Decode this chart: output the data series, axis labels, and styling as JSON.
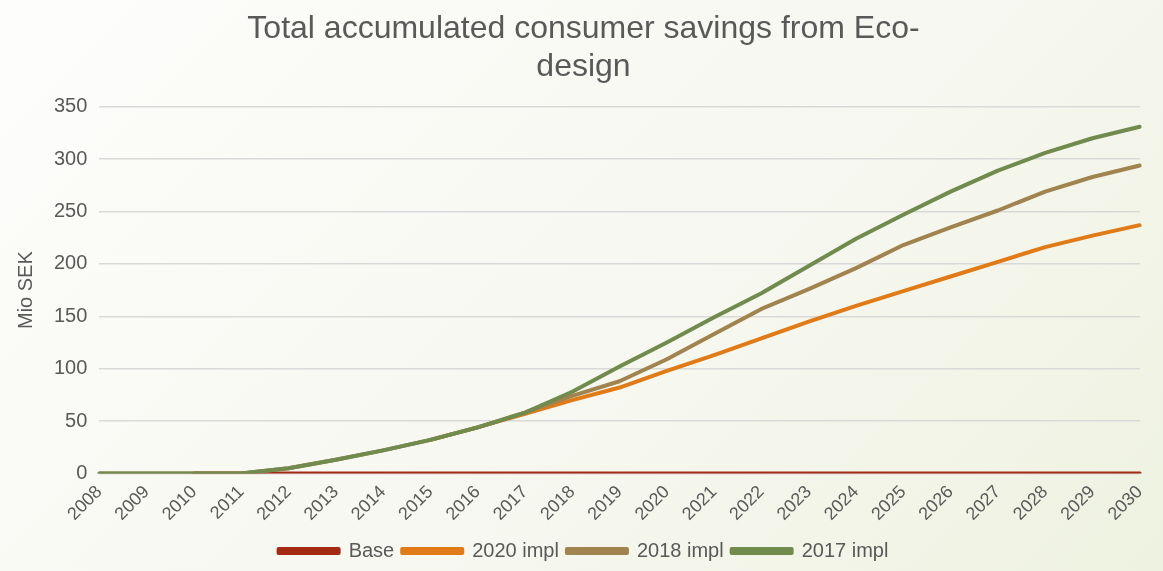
{
  "chart_data": {
    "type": "line",
    "title": [
      "Total accumulated consumer savings from Eco-",
      "design"
    ],
    "ylabel": "Mio SEK",
    "categories": [
      "2008",
      "2009",
      "2010",
      "2011",
      "2012",
      "2013",
      "2014",
      "2015",
      "2016",
      "2017",
      "2018",
      "2019",
      "2020",
      "2021",
      "2022",
      "2023",
      "2024",
      "2025",
      "2026",
      "2027",
      "2028",
      "2029",
      "2030"
    ],
    "series": [
      {
        "name": "Base",
        "color": "#a52a14",
        "values": [
          null,
          null,
          0,
          0,
          0,
          0,
          0,
          0,
          0,
          0,
          0,
          0,
          0,
          0,
          0,
          0,
          0,
          0,
          0,
          0,
          0,
          0,
          0
        ]
      },
      {
        "name": "2020 impl",
        "color": "#e07b18",
        "values": [
          null,
          null,
          null,
          null,
          null,
          null,
          null,
          32,
          44,
          57,
          70,
          82,
          98,
          113,
          129,
          145,
          160,
          174,
          188,
          202,
          216,
          227,
          237
        ]
      },
      {
        "name": "2018 impl",
        "color": "#a0834f",
        "values": [
          0,
          0,
          0,
          0,
          5,
          13,
          22,
          32,
          44,
          58,
          74,
          88,
          109,
          133,
          157,
          176,
          196,
          218,
          235,
          251,
          269,
          283,
          294
        ]
      },
      {
        "name": "2017 impl",
        "color": "#718a4e",
        "values": [
          0,
          0,
          0,
          0,
          5,
          13,
          22,
          32,
          44,
          58,
          78,
          102,
          125,
          149,
          172,
          198,
          224,
          247,
          269,
          289,
          306,
          320,
          331
        ]
      }
    ],
    "ylim": [
      0,
      350
    ],
    "yticks": [
      0,
      50,
      100,
      150,
      200,
      250,
      300,
      350
    ],
    "grid": "y",
    "legend": "bottom",
    "marker": "none",
    "line_style": "solid"
  }
}
